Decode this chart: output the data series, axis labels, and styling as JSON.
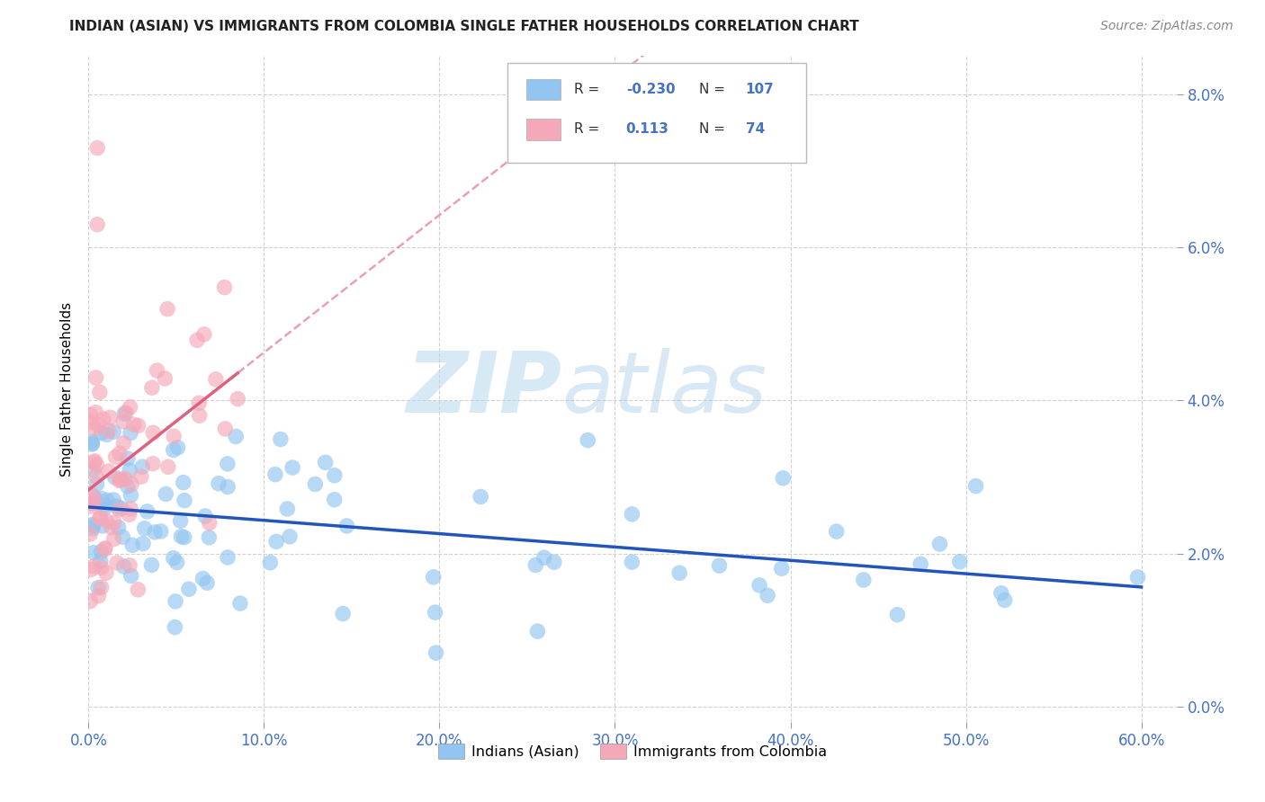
{
  "title": "INDIAN (ASIAN) VS IMMIGRANTS FROM COLOMBIA SINGLE FATHER HOUSEHOLDS CORRELATION CHART",
  "source": "Source: ZipAtlas.com",
  "ylabel": "Single Father Households",
  "xlabel_ticks": [
    "0.0%",
    "10.0%",
    "20.0%",
    "30.0%",
    "40.0%",
    "50.0%",
    "60.0%"
  ],
  "xlabel_vals": [
    0.0,
    0.1,
    0.2,
    0.3,
    0.4,
    0.5,
    0.6
  ],
  "ylabel_ticks": [
    "0.0%",
    "2.0%",
    "4.0%",
    "6.0%",
    "8.0%"
  ],
  "ylabel_vals": [
    0.0,
    0.02,
    0.04,
    0.06,
    0.08
  ],
  "blue_R": -0.23,
  "blue_N": 107,
  "pink_R": 0.113,
  "pink_N": 74,
  "blue_color": "#92c5f0",
  "pink_color": "#f5a8b8",
  "blue_line_color": "#2255bb",
  "pink_line_color": "#e06080",
  "watermark_zip": "ZIP",
  "watermark_atlas": "atlas",
  "legend_blue_label": "Indians (Asian)",
  "legend_pink_label": "Immigrants from Colombia",
  "xlim": [
    0.0,
    0.62
  ],
  "ylim": [
    -0.002,
    0.085
  ]
}
